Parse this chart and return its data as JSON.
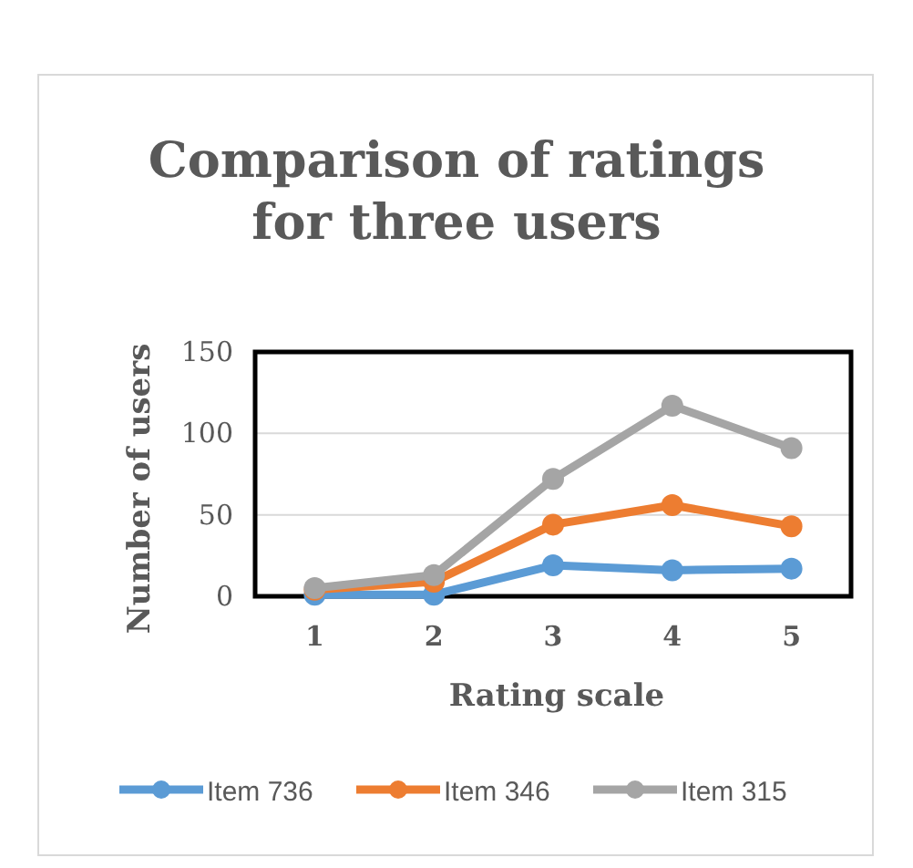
{
  "chart_data": {
    "type": "line",
    "title": "Comparison of ratings for three users",
    "xlabel": "Rating scale",
    "ylabel": "Number of users",
    "categories": [
      "1",
      "2",
      "3",
      "4",
      "5"
    ],
    "series": [
      {
        "name": "Item 736",
        "color": "#5b9bd5",
        "values": [
          1,
          1,
          19,
          16,
          17
        ]
      },
      {
        "name": "Item 346",
        "color": "#ed7d31",
        "values": [
          4,
          9,
          44,
          56,
          43
        ]
      },
      {
        "name": "Item 315",
        "color": "#a5a5a5",
        "values": [
          5,
          13,
          72,
          117,
          91
        ]
      }
    ],
    "ylim": [
      0,
      150
    ],
    "yticks": [
      0,
      50,
      100,
      150
    ],
    "grid": "y",
    "legend": "bottom",
    "marker": "circle",
    "line_style": "solid"
  }
}
